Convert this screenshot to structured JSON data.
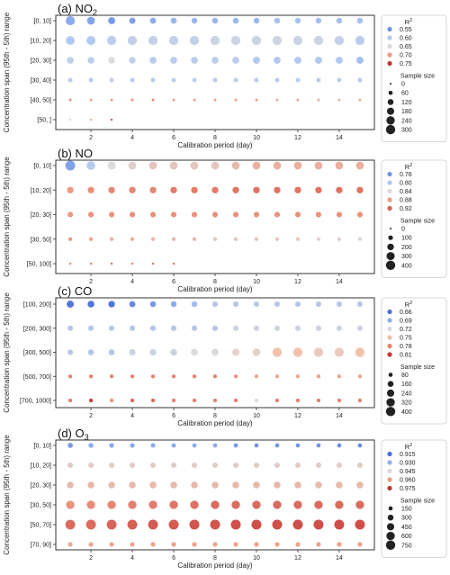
{
  "chart_data": [
    {
      "type": "scatter",
      "panel_label": "(a)",
      "pollutant": "NO",
      "pollutant_sub": "2",
      "ylabel": "Concentration span (95th - 5th) range",
      "xlabel": "Calibration period (day)",
      "x": [
        1,
        2,
        3,
        4,
        5,
        6,
        7,
        8,
        9,
        10,
        11,
        12,
        13,
        14,
        15
      ],
      "x_ticks": [
        2,
        4,
        6,
        8,
        10,
        12,
        14
      ],
      "categories": [
        "[0, 10]",
        "[10, 20]",
        "[20, 30]",
        "[30, 40]",
        "[40, 50]",
        "[50, ]"
      ],
      "r2_legend": {
        "title": "R",
        "title_sup": "2",
        "entries": [
          "0.55",
          "0.60",
          "0.65",
          "0.70",
          "0.75"
        ],
        "colors": [
          "#6f93e8",
          "#aec6f1",
          "#dadada",
          "#ee9a80",
          "#c53533"
        ]
      },
      "size_legend": {
        "title": "Sample size",
        "entries": [
          "0",
          "60",
          "120",
          "180",
          "240",
          "300"
        ]
      },
      "r2_range": [
        0.55,
        0.75
      ],
      "size_range": [
        0,
        300
      ],
      "rows": [
        {
          "category": "[0, 10]",
          "r2": [
            0.57,
            0.56,
            0.55,
            0.56,
            0.57,
            0.58,
            0.58,
            0.58,
            0.58,
            0.58,
            0.59,
            0.59,
            0.59,
            0.59,
            0.59
          ],
          "size": [
            250,
            180,
            140,
            120,
            110,
            110,
            100,
            100,
            100,
            100,
            100,
            100,
            100,
            100,
            100
          ]
        },
        {
          "category": "[10, 20]",
          "r2": [
            0.6,
            0.6,
            0.61,
            0.62,
            0.62,
            0.62,
            0.62,
            0.63,
            0.63,
            0.63,
            0.63,
            0.63,
            0.63,
            0.62,
            0.61
          ],
          "size": [
            230,
            240,
            250,
            250,
            250,
            250,
            250,
            250,
            250,
            250,
            250,
            250,
            250,
            250,
            250
          ]
        },
        {
          "category": "[20, 30]",
          "r2": [
            0.62,
            0.61,
            0.65,
            0.62,
            0.61,
            0.61,
            0.61,
            0.61,
            0.61,
            0.6,
            0.6,
            0.6,
            0.6,
            0.6,
            0.59
          ],
          "size": [
            140,
            130,
            130,
            130,
            140,
            140,
            140,
            140,
            140,
            150,
            150,
            150,
            150,
            150,
            150
          ]
        },
        {
          "category": "[30, 40]",
          "r2": [
            0.61,
            0.61,
            0.62,
            0.61,
            0.61,
            0.61,
            0.61,
            0.61,
            0.61,
            0.61,
            0.61,
            0.61,
            0.61,
            0.61,
            0.61
          ],
          "size": [
            60,
            60,
            60,
            60,
            60,
            60,
            60,
            60,
            60,
            60,
            60,
            60,
            60,
            60,
            60
          ]
        },
        {
          "category": "[40, 50]",
          "r2": [
            0.71,
            0.7,
            0.7,
            0.71,
            0.71,
            0.7,
            0.7,
            0.7,
            0.7,
            0.7,
            0.69,
            0.69,
            0.69,
            0.69,
            0.69
          ],
          "size": [
            20,
            20,
            20,
            20,
            20,
            20,
            20,
            20,
            20,
            20,
            20,
            20,
            20,
            20,
            20
          ]
        },
        {
          "category": "[50, ]",
          "r2": [
            0.66,
            0.7,
            0.76,
            null,
            null,
            null,
            null,
            null,
            null,
            null,
            null,
            null,
            null,
            null,
            null
          ],
          "size": [
            8,
            8,
            8,
            null,
            null,
            null,
            null,
            null,
            null,
            null,
            null,
            null,
            null,
            null,
            null
          ]
        }
      ]
    },
    {
      "type": "scatter",
      "panel_label": "(b)",
      "pollutant": "NO",
      "pollutant_sub": "",
      "ylabel": "Concentration span (95th - 5th) range",
      "xlabel": "Calibration period (day)",
      "x": [
        1,
        2,
        3,
        4,
        5,
        6,
        7,
        8,
        9,
        10,
        11,
        12,
        13,
        14,
        15
      ],
      "x_ticks": [
        2,
        4,
        6,
        8,
        10,
        12,
        14
      ],
      "categories": [
        "[0, 10]",
        "[10, 20]",
        "[20, 30]",
        "[30, 50]",
        "[50, 100]"
      ],
      "r2_legend": {
        "title": "R",
        "title_sup": "2",
        "entries": [
          "0.76",
          "0.80",
          "0.84",
          "0.88",
          "0.92"
        ],
        "colors": [
          "#6f93e8",
          "#aec6f1",
          "#dadada",
          "#ee9a80",
          "#d9604f"
        ]
      },
      "size_legend": {
        "title": "Sample size",
        "entries": [
          "0",
          "100",
          "200",
          "300",
          "400"
        ]
      },
      "r2_range": [
        0.74,
        0.96
      ],
      "size_range": [
        0,
        400
      ],
      "rows": [
        {
          "category": "[0, 10]",
          "r2": [
            0.75,
            0.8,
            0.85,
            0.86,
            0.87,
            0.87,
            0.87,
            0.87,
            0.88,
            0.89,
            0.89,
            0.89,
            0.89,
            0.89,
            0.89
          ],
          "size": [
            380,
            300,
            260,
            250,
            250,
            240,
            240,
            240,
            240,
            240,
            240,
            240,
            240,
            240,
            240
          ]
        },
        {
          "category": "[10, 20]",
          "r2": [
            0.91,
            0.92,
            0.93,
            0.93,
            0.93,
            0.94,
            0.94,
            0.94,
            0.95,
            0.95,
            0.95,
            0.95,
            0.95,
            0.95,
            0.95
          ],
          "size": [
            170,
            170,
            170,
            170,
            170,
            170,
            170,
            170,
            170,
            170,
            170,
            170,
            170,
            170,
            170
          ]
        },
        {
          "category": "[20, 30]",
          "r2": [
            0.91,
            0.92,
            0.92,
            0.92,
            0.92,
            0.92,
            0.92,
            0.92,
            0.92,
            0.92,
            0.92,
            0.92,
            0.92,
            0.92,
            0.92
          ],
          "size": [
            120,
            120,
            120,
            120,
            120,
            120,
            120,
            120,
            120,
            120,
            120,
            120,
            120,
            120,
            120
          ]
        },
        {
          "category": "[30, 50]",
          "r2": [
            0.91,
            0.9,
            0.89,
            0.89,
            0.88,
            0.88,
            0.88,
            0.87,
            0.87,
            0.87,
            0.87,
            0.87,
            0.86,
            0.86,
            0.86
          ],
          "size": [
            60,
            60,
            60,
            60,
            60,
            60,
            60,
            60,
            60,
            60,
            60,
            60,
            60,
            60,
            60
          ]
        },
        {
          "category": "[50, 100]",
          "r2": [
            0.92,
            0.93,
            0.95,
            0.93,
            0.94,
            0.94,
            null,
            null,
            null,
            null,
            null,
            null,
            null,
            null,
            null
          ],
          "size": [
            20,
            20,
            20,
            20,
            20,
            20,
            null,
            null,
            null,
            null,
            null,
            null,
            null,
            null,
            null
          ]
        }
      ]
    },
    {
      "type": "scatter",
      "panel_label": "(c)",
      "pollutant": "CO",
      "pollutant_sub": "",
      "ylabel": "Concentration span (95th - 5th) range",
      "xlabel": "Calibration period (day)",
      "x": [
        1,
        2,
        3,
        4,
        5,
        6,
        7,
        8,
        9,
        10,
        11,
        12,
        13,
        14,
        15
      ],
      "x_ticks": [
        2,
        4,
        6,
        8,
        10,
        12,
        14
      ],
      "categories": [
        "[100, 200]",
        "[200, 300]",
        "[300, 500]",
        "[500, 700]",
        "[700, 1000]"
      ],
      "r2_legend": {
        "title": "R",
        "title_sup": "2",
        "entries": [
          "0.66",
          "0.69",
          "0.72",
          "0.75",
          "0.78",
          "0.81"
        ],
        "colors": [
          "#4a6fd9",
          "#8fb0ee",
          "#dadada",
          "#f2bca4",
          "#e8826a",
          "#c53533"
        ]
      },
      "size_legend": {
        "title": "Sample size",
        "entries": [
          "80",
          "160",
          "240",
          "320",
          "400"
        ]
      },
      "r2_range": [
        0.65,
        0.82
      ],
      "size_range": [
        0,
        400
      ],
      "rows": [
        {
          "category": "[100, 200]",
          "r2": [
            0.65,
            0.65,
            0.65,
            0.66,
            0.67,
            0.68,
            0.69,
            0.7,
            0.7,
            0.7,
            0.7,
            0.7,
            0.7,
            0.7,
            0.7
          ],
          "size": [
            200,
            180,
            170,
            150,
            140,
            130,
            130,
            120,
            120,
            120,
            120,
            120,
            120,
            120,
            120
          ]
        },
        {
          "category": "[200, 300]",
          "r2": [
            0.7,
            0.7,
            0.7,
            0.7,
            0.7,
            0.7,
            0.7,
            0.7,
            0.71,
            0.71,
            0.71,
            0.71,
            0.71,
            0.71,
            0.71
          ],
          "size": [
            120,
            120,
            120,
            120,
            120,
            120,
            120,
            120,
            120,
            120,
            120,
            120,
            120,
            120,
            120
          ]
        },
        {
          "category": "[300, 500]",
          "r2": [
            0.7,
            0.7,
            0.7,
            0.71,
            0.71,
            0.71,
            0.72,
            0.72,
            0.73,
            0.73,
            0.75,
            0.75,
            0.74,
            0.74,
            0.75
          ],
          "size": [
            120,
            140,
            150,
            160,
            170,
            180,
            190,
            200,
            210,
            230,
            340,
            340,
            330,
            330,
            340
          ]
        },
        {
          "category": "[500, 700]",
          "r2": [
            0.79,
            0.79,
            0.79,
            0.79,
            0.79,
            0.79,
            0.79,
            0.79,
            0.78,
            0.77,
            0.77,
            0.77,
            0.77,
            0.77,
            0.77
          ],
          "size": [
            60,
            60,
            60,
            60,
            60,
            60,
            60,
            60,
            60,
            60,
            60,
            60,
            60,
            60,
            60
          ]
        },
        {
          "category": "[700, 1000]",
          "r2": [
            0.79,
            0.82,
            0.78,
            0.8,
            0.8,
            0.79,
            0.79,
            0.79,
            0.79,
            0.72,
            0.79,
            0.79,
            0.79,
            0.79,
            0.79
          ],
          "size": [
            60,
            60,
            60,
            60,
            60,
            60,
            60,
            60,
            60,
            60,
            60,
            60,
            60,
            60,
            60
          ]
        }
      ]
    },
    {
      "type": "scatter",
      "panel_label": "(d)",
      "pollutant": "O",
      "pollutant_sub": "3",
      "ylabel": "Concentration span (95th - 5th) range",
      "xlabel": "Calibration period (day)",
      "x": [
        1,
        2,
        3,
        4,
        5,
        6,
        7,
        8,
        9,
        10,
        11,
        12,
        13,
        14,
        15
      ],
      "x_ticks": [
        2,
        4,
        6,
        8,
        10,
        12,
        14
      ],
      "categories": [
        "[0, 10]",
        "[10, 20]",
        "[20, 30]",
        "[30, 50]",
        "[50, 70]",
        "[70, 90]"
      ],
      "r2_legend": {
        "title": "R",
        "title_sup": "2",
        "entries": [
          "0.915",
          "0.930",
          "0.945",
          "0.960",
          "0.975"
        ],
        "colors": [
          "#4a6fd9",
          "#8fb0ee",
          "#dadada",
          "#ee9a80",
          "#c53533"
        ]
      },
      "size_legend": {
        "title": "Sample size",
        "entries": [
          "150",
          "300",
          "450",
          "600",
          "750"
        ]
      },
      "r2_range": [
        0.91,
        0.98
      ],
      "size_range": [
        0,
        750
      ],
      "rows": [
        {
          "category": "[0, 10]",
          "r2": [
            0.92,
            0.925,
            0.925,
            0.925,
            0.925,
            0.925,
            0.925,
            0.925,
            0.92,
            0.918,
            0.918,
            0.918,
            0.918,
            0.916,
            0.916
          ],
          "size": [
            200,
            180,
            170,
            160,
            150,
            150,
            140,
            140,
            140,
            130,
            130,
            130,
            130,
            130,
            130
          ]
        },
        {
          "category": "[10, 20]",
          "r2": [
            0.95,
            0.95,
            0.95,
            0.95,
            0.95,
            0.95,
            0.95,
            0.95,
            0.95,
            0.95,
            0.95,
            0.95,
            0.95,
            0.95,
            0.95
          ],
          "size": [
            220,
            220,
            220,
            220,
            220,
            220,
            220,
            220,
            220,
            220,
            220,
            220,
            220,
            220,
            220
          ]
        },
        {
          "category": "[20, 30]",
          "r2": [
            0.955,
            0.955,
            0.955,
            0.955,
            0.955,
            0.955,
            0.955,
            0.955,
            0.955,
            0.955,
            0.955,
            0.955,
            0.955,
            0.955,
            0.955
          ],
          "size": [
            320,
            330,
            330,
            330,
            340,
            340,
            340,
            340,
            340,
            340,
            340,
            340,
            340,
            340,
            340
          ]
        },
        {
          "category": "[30, 50]",
          "r2": [
            0.965,
            0.966,
            0.967,
            0.968,
            0.969,
            0.97,
            0.971,
            0.972,
            0.972,
            0.972,
            0.972,
            0.972,
            0.972,
            0.972,
            0.972
          ],
          "size": [
            520,
            520,
            520,
            520,
            520,
            520,
            520,
            520,
            520,
            520,
            520,
            520,
            520,
            520,
            520
          ]
        },
        {
          "category": "[50, 70]",
          "r2": [
            0.972,
            0.972,
            0.973,
            0.974,
            0.975,
            0.975,
            0.976,
            0.976,
            0.977,
            0.977,
            0.977,
            0.977,
            0.977,
            0.977,
            0.977
          ],
          "size": [
            700,
            710,
            720,
            720,
            720,
            730,
            730,
            730,
            730,
            730,
            730,
            730,
            730,
            730,
            730
          ]
        },
        {
          "category": "[70, 90]",
          "r2": [
            0.96,
            0.96,
            0.961,
            0.961,
            0.962,
            0.962,
            0.962,
            0.962,
            0.962,
            0.962,
            0.962,
            0.962,
            0.962,
            0.962,
            0.962
          ],
          "size": [
            160,
            160,
            160,
            160,
            160,
            160,
            160,
            160,
            160,
            160,
            160,
            160,
            160,
            160,
            160
          ]
        }
      ]
    }
  ]
}
